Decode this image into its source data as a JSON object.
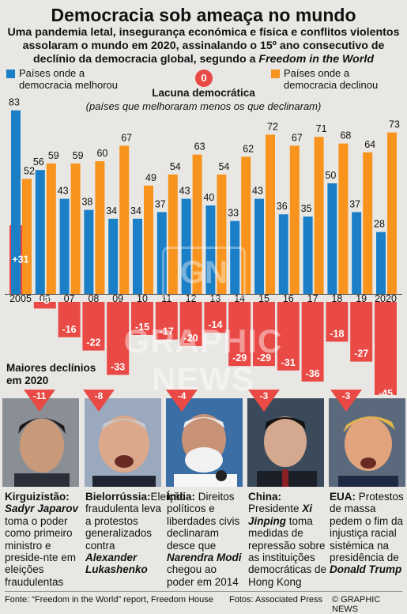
{
  "title": "Democracia sob ameaça no mundo",
  "subtitle_lines": [
    "Uma pandemia letal, insegurança económica e física e conflitos violentos",
    "assolaram o mundo em 2020, assinalando o 15º ano consecutivo de",
    "declínio da democracia global, segundo a"
  ],
  "subtitle_italic": "Freedom in the World",
  "legend": {
    "improved_line1": "Países onde a",
    "improved_line2": "democracia melhorou",
    "declined_line1": "Países onde a",
    "declined_line2": "democracia declinou"
  },
  "gap": {
    "zero_label": "0",
    "title": "Lacuna democrática",
    "subtitle": "(países que melhoraram menos os que declinaram)"
  },
  "colors": {
    "improved": "#1a7fc7",
    "declined": "#f8941d",
    "gap": "#e94a45"
  },
  "chart_data": {
    "type": "bar",
    "categories": [
      "2005",
      "06",
      "07",
      "08",
      "09",
      "10",
      "11",
      "12",
      "13",
      "14",
      "15",
      "16",
      "17",
      "18",
      "19",
      "2020"
    ],
    "series": [
      {
        "name": "Países onde a democracia melhorou",
        "values": [
          83,
          56,
          43,
          38,
          34,
          34,
          37,
          43,
          40,
          33,
          43,
          36,
          35,
          50,
          37,
          28
        ]
      },
      {
        "name": "Países onde a democracia declinou",
        "values": [
          52,
          59,
          59,
          60,
          67,
          49,
          54,
          63,
          54,
          62,
          72,
          67,
          71,
          68,
          64,
          73
        ]
      },
      {
        "name": "Lacuna democrática",
        "values": [
          31,
          -3,
          -16,
          -22,
          -33,
          -15,
          -17,
          -20,
          -14,
          -29,
          -29,
          -31,
          -36,
          -18,
          -27,
          -45
        ]
      }
    ],
    "gap_labels": [
      "+31",
      "-3",
      "-16",
      "-22",
      "-33",
      "-15",
      "-17",
      "-20",
      "-14",
      "-29",
      "-29",
      "-31",
      "-36",
      "-18",
      "-27",
      "-45"
    ]
  },
  "watermark": {
    "logo": "GN",
    "text": "GRAPHIC NEWS"
  },
  "major_declines_title_line1": "Maiores declínios",
  "major_declines_title_line2": "em 2020",
  "countries": [
    {
      "delta": "-11",
      "country": "Kirguizistão:",
      "lines": [
        [
          "b",
          "Sadyr"
        ],
        [
          "b",
          "Japarov"
        ],
        [
          "t",
          " toma o poder como primeiro ministro e preside-nte em eleições fraudulentas"
        ]
      ]
    },
    {
      "delta": "-8",
      "country": "Bielorrússia:",
      "lines": [
        [
          "t",
          "Eleição fraudulenta leva a protestos generalizados contra "
        ],
        [
          "b",
          "Alexander Lukashenko"
        ]
      ]
    },
    {
      "delta": "-4",
      "country": "Índia:",
      "lines": [
        [
          "t",
          " Direitos políticos e liberdades civis declinaram desce que "
        ],
        [
          "b",
          "Narendra Modi"
        ],
        [
          "t",
          " chegou ao poder em 2014"
        ]
      ]
    },
    {
      "delta": "-3",
      "country": "China:",
      "lines": [
        [
          "t",
          " Presidente "
        ],
        [
          "b",
          "Xi Jinping"
        ],
        [
          "t",
          " toma medidas de repressão sobre as instituições democráticas de Hong Kong"
        ]
      ]
    },
    {
      "delta": "-3",
      "country": "EUA:",
      "lines": [
        [
          "t",
          " Protestos de massa pedem o fim da injustiça racial sistémica na presidência de "
        ],
        [
          "b",
          "Donald Trump"
        ]
      ]
    }
  ],
  "footer": {
    "source": "Fonte: “Freedom in the World” report, Freedom House",
    "photos": "Fotos: Associated Press",
    "credit": "© GRAPHIC NEWS"
  }
}
